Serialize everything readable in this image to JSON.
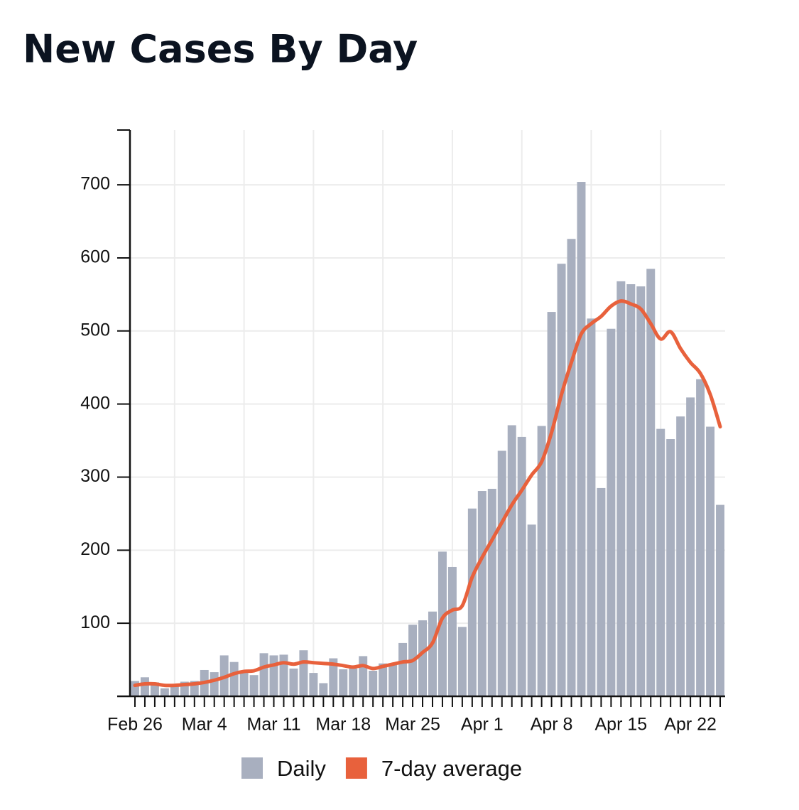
{
  "chart_data": {
    "type": "bar",
    "title": "New Cases By Day",
    "categories": [
      "Feb 26",
      null,
      null,
      null,
      null,
      null,
      null,
      "Mar 4",
      null,
      null,
      null,
      null,
      null,
      null,
      "Mar 11",
      null,
      null,
      null,
      null,
      null,
      null,
      "Mar 18",
      null,
      null,
      null,
      null,
      null,
      null,
      "Mar 25",
      null,
      null,
      null,
      null,
      null,
      null,
      "Apr 1",
      null,
      null,
      null,
      null,
      null,
      null,
      "Apr 8",
      null,
      null,
      null,
      null,
      null,
      null,
      "Apr 15",
      null,
      null,
      null,
      null,
      null,
      null,
      "Apr 22",
      null,
      null,
      null
    ],
    "series": [
      {
        "name": "Daily",
        "type": "bar",
        "color": "#a8afbf",
        "values": [
          21,
          26,
          19,
          11,
          17,
          20,
          21,
          36,
          33,
          56,
          47,
          34,
          29,
          59,
          56,
          57,
          38,
          63,
          32,
          18,
          52,
          37,
          38,
          55,
          35,
          45,
          44,
          73,
          98,
          104,
          116,
          198,
          177,
          95,
          257,
          281,
          284,
          336,
          371,
          355,
          235,
          370,
          526,
          592,
          626,
          704,
          517,
          285,
          503,
          568,
          564,
          561,
          585,
          366,
          352,
          383,
          409,
          434,
          369,
          262
        ]
      },
      {
        "name": "7-day average",
        "type": "line",
        "color": "#e8613c",
        "values": [
          15,
          17,
          17,
          15,
          15,
          16,
          17,
          19,
          22,
          26,
          31,
          34,
          35,
          40,
          43,
          46,
          44,
          47,
          46,
          45,
          44,
          42,
          40,
          42,
          38,
          41,
          44,
          47,
          49,
          60,
          73,
          107,
          118,
          124,
          163,
          190,
          214,
          238,
          262,
          282,
          303,
          321,
          361,
          413,
          457,
          496,
          510,
          520,
          534,
          541,
          537,
          530,
          510,
          489,
          499,
          476,
          457,
          442,
          413,
          369
        ]
      }
    ],
    "ylim": [
      0,
      775
    ],
    "yticks": [
      100,
      200,
      300,
      400,
      500,
      600,
      700
    ],
    "grid": true
  }
}
